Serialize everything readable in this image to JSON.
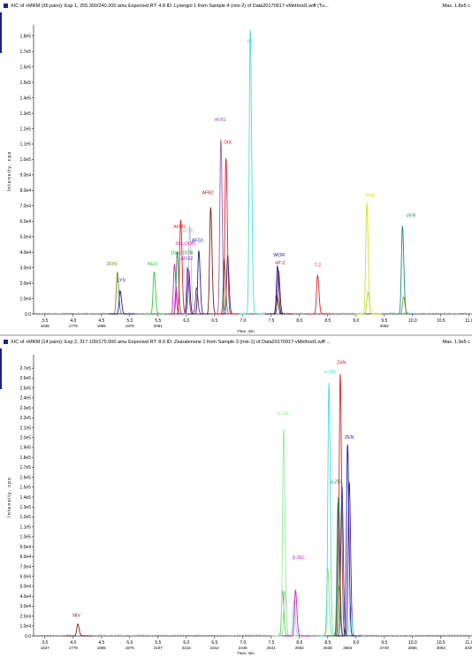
{
  "chart_data": [
    {
      "type": "line",
      "title": "XIC of +MRM (36 pairs): Exp 1, 255.300/240.200 amu Expected RT: 4.8 ID: Lysergol 1 from Sample 4 (mix-2) of Data20170917-vMethod1.wiff (Tu...",
      "max_label": "Max. 1.8e5 c",
      "xlabel": "Time, min",
      "ylabel": "Intensity, cps",
      "xlim": [
        3.3,
        11.05
      ],
      "ylim": [
        0,
        185000
      ],
      "x_ticks": [
        "3.5",
        "4.0",
        "4.5",
        "5.0",
        "5.5",
        "6.0",
        "6.5",
        "7.0",
        "7.5",
        "8.0",
        "8.5",
        "9.0",
        "9.5",
        "10.0",
        "10.5",
        "11.0"
      ],
      "x_tick_values": [
        3.5,
        4.0,
        4.5,
        5.0,
        5.5,
        6.0,
        6.5,
        7.0,
        7.5,
        8.0,
        8.5,
        9.0,
        9.5,
        10.0,
        10.5,
        11.0
      ],
      "scan_labels": [
        "1638",
        "1779",
        "1865",
        "1975",
        "2051",
        "2052"
      ],
      "scan_label_x": [
        3.5,
        4.0,
        4.5,
        5.0,
        5.5,
        9.5
      ],
      "y_ticks": [
        "1.8e5",
        "1.7e5",
        "1.6e5",
        "1.5e5",
        "1.4e5",
        "1.3e5",
        "1.2e5",
        "1.1e5",
        "1.0e5",
        "9.0e4",
        "8.0e4",
        "7.0e4",
        "6.0e4",
        "5.0e4",
        "4.0e4",
        "3.0e4",
        "2.0e4",
        "1.0e4",
        "0.0"
      ],
      "y_tick_values": [
        180000,
        170000,
        160000,
        150000,
        140000,
        130000,
        120000,
        110000,
        100000,
        90000,
        80000,
        70000,
        60000,
        50000,
        40000,
        30000,
        20000,
        10000,
        0
      ],
      "peaks": [
        {
          "name": "DON",
          "rt": 4.78,
          "height": 27000,
          "color": "#6b8e23",
          "label_rt": 4.68,
          "label_y": 31500
        },
        {
          "name": "LYS",
          "rt": 4.83,
          "height": 15000,
          "color": "#1a1aa6",
          "label_rt": 4.85,
          "label_y": 21000
        },
        {
          "name": "NEO",
          "rt": 5.43,
          "height": 27000,
          "color": "#2ecc2e",
          "label_rt": 5.4,
          "label_y": 31500
        },
        {
          "name": "3Ac-DON",
          "rt": 5.79,
          "height": 32000,
          "color": "#d61ac2",
          "label_rt": 5.98,
          "label_y": 44800
        },
        {
          "name": "15Ac-DON",
          "rt": 5.84,
          "height": 40000,
          "color": "#2e8b57",
          "label_rt": 5.92,
          "label_y": 38600
        },
        {
          "name": "AFM2",
          "rt": 5.9,
          "height": 61000,
          "color": "#e02020",
          "label_rt": 5.88,
          "label_y": 55600
        },
        {
          "name": "AFM1",
          "rt": 6.06,
          "height": 57000,
          "color": "#bdbdbd",
          "label_rt": 6.04,
          "label_y": 53000
        },
        {
          "name": "AFG2",
          "rt": 6.02,
          "height": 30000,
          "color": "#8a2be2",
          "label_rt": 6.01,
          "label_y": 34800
        },
        {
          "name": "AFG1",
          "rt": 6.22,
          "height": 41000,
          "color": "#2020a0",
          "label_rt": 6.2,
          "label_y": 46800
        },
        {
          "name": "AFB2",
          "rt": 6.43,
          "height": 69000,
          "color": "#7b1c1c",
          "label_rt": 6.38,
          "label_y": 77500
        },
        {
          "name": "AFB1",
          "rt": 6.61,
          "height": 113000,
          "color": "#9b59b6",
          "label_rt": 6.6,
          "label_y": 125000
        },
        {
          "name": "DIA",
          "rt": 6.7,
          "height": 101000,
          "color": "#e02020",
          "label_rt": 6.73,
          "label_y": 110200
        },
        {
          "name": "RC",
          "rt": 7.13,
          "height": 184000,
          "color": "#40e0e0",
          "label_rt": 7.13,
          "label_y": 175500
        },
        {
          "name": "WOR",
          "rt": 7.61,
          "height": 31000,
          "color": "#2020a0",
          "label_rt": 7.64,
          "label_y": 37100
        },
        {
          "name": "HT-2",
          "rt": 7.63,
          "height": 28000,
          "color": "#7b1c1c",
          "label_rt": 7.66,
          "label_y": 32100
        },
        {
          "name": "T-2",
          "rt": 8.32,
          "height": 25000,
          "color": "#e02020",
          "label_rt": 8.32,
          "label_y": 30500
        },
        {
          "name": "ENB",
          "rt": 9.19,
          "height": 72000,
          "color": "#d8e020",
          "label_rt": 9.25,
          "label_y": 76000
        },
        {
          "name": "VER",
          "rt": 9.82,
          "height": 57000,
          "color": "#1a8a7a",
          "label_rt": 9.97,
          "label_y": 62700
        }
      ],
      "extra_traces": [
        {
          "rt": 5.82,
          "height": 18000,
          "color": "#e040fb"
        },
        {
          "rt": 6.04,
          "height": 29000,
          "color": "#111111"
        },
        {
          "rt": 6.18,
          "height": 17000,
          "color": "#7b1c1c"
        },
        {
          "rt": 6.67,
          "height": 36000,
          "color": "#2e7d32"
        },
        {
          "rt": 6.73,
          "height": 38000,
          "color": "#2020a0"
        },
        {
          "rt": 7.6,
          "height": 12000,
          "color": "#111111"
        },
        {
          "rt": 9.21,
          "height": 14000,
          "color": "#a0d040"
        },
        {
          "rt": 9.84,
          "height": 11000,
          "color": "#6b8e23"
        }
      ]
    },
    {
      "type": "line",
      "title": "XIC of +MRM (14 pairs): Exp 2, 317.100/175.000 amu Expected RT: 8.9 ID: Zearalenone 1 from Sample 3 (mix-1) of Data20170917-vMethod1.wiff ...",
      "max_label": "Max. 1.9e5 c",
      "xlabel": "Time, min",
      "ylabel": "Intensity, cps",
      "xlim": [
        3.3,
        11.05
      ],
      "ylim": [
        0,
        280000
      ],
      "x_ticks": [
        "3.5",
        "4.0",
        "4.5",
        "5.0",
        "5.5",
        "6.0",
        "6.5",
        "7.0",
        "7.5",
        "8.0",
        "8.5",
        "9.0",
        "9.5",
        "10.0",
        "10.5",
        "11.0"
      ],
      "x_tick_values": [
        3.5,
        4.0,
        4.5,
        5.0,
        5.5,
        6.0,
        6.5,
        7.0,
        7.5,
        8.0,
        8.5,
        9.0,
        9.5,
        10.0,
        10.5,
        11.0
      ],
      "scan_labels": [
        "1637",
        "1778",
        "1865",
        "1975",
        "2107",
        "2216",
        "2312",
        "2445",
        "2541",
        "2592",
        "2638",
        "2684",
        "2749",
        "2866",
        "3053",
        "3339"
      ],
      "scan_label_x": [
        3.5,
        4.0,
        4.5,
        5.0,
        5.5,
        6.0,
        6.5,
        7.0,
        7.5,
        8.0,
        8.5,
        8.85,
        9.5,
        10.0,
        10.5,
        11.0
      ],
      "y_ticks": [
        "2.7e5",
        "2.6e5",
        "2.5e5",
        "2.4e5",
        "2.3e5",
        "2.2e5",
        "2.1e5",
        "2.0e5",
        "1.9e5",
        "1.8e5",
        "1.7e5",
        "1.6e5",
        "1.5e5",
        "1.4e5",
        "1.3e5",
        "1.2e5",
        "1.1e5",
        "1.0e5",
        "9.0e4",
        "8.0e4",
        "7.0e4",
        "6.0e4",
        "5.0e4",
        "4.0e4",
        "3.0e4",
        "2.0e4",
        "1.0e4",
        "0.0"
      ],
      "y_tick_values": [
        270000,
        260000,
        250000,
        240000,
        230000,
        220000,
        210000,
        200000,
        190000,
        180000,
        170000,
        160000,
        150000,
        140000,
        130000,
        120000,
        110000,
        100000,
        90000,
        80000,
        70000,
        60000,
        50000,
        40000,
        30000,
        20000,
        10000,
        0
      ],
      "peaks": [
        {
          "name": "NIV",
          "rt": 4.08,
          "height": 12000,
          "color": "#7b1c1c",
          "label_rt": 4.06,
          "label_y": 19000
        },
        {
          "name": "β-ZAL",
          "rt": 7.72,
          "height": 209000,
          "color": "#90ee90",
          "label_rt": 7.72,
          "label_y": 223000
        },
        {
          "name": "β-ZEL",
          "rt": 7.93,
          "height": 46000,
          "color": "#d61ac2",
          "label_rt": 7.99,
          "label_y": 77800
        },
        {
          "name": "α-ZAL",
          "rt": 8.52,
          "height": 255000,
          "color": "#40e0e0",
          "label_rt": 8.55,
          "label_y": 265000
        },
        {
          "name": "ZAN",
          "rt": 8.72,
          "height": 264000,
          "color": "#e02020",
          "label_rt": 8.74,
          "label_y": 274000
        },
        {
          "name": "α-ZEL",
          "rt": 8.69,
          "height": 140000,
          "color": "#2e7d32",
          "label_rt": 8.66,
          "label_y": 154000
        },
        {
          "name": "ZEN",
          "rt": 8.85,
          "height": 193000,
          "color": "#1a1aa6",
          "label_rt": 8.88,
          "label_y": 199000
        }
      ],
      "extra_traces": [
        {
          "rt": 7.7,
          "height": 45000,
          "color": "#2ecc2e"
        },
        {
          "rt": 7.74,
          "height": 45000,
          "color": "#bdbdbd"
        },
        {
          "rt": 7.9,
          "height": 35000,
          "color": "#87ceeb"
        },
        {
          "rt": 8.5,
          "height": 68000,
          "color": "#a0d040"
        },
        {
          "rt": 8.68,
          "height": 135000,
          "color": "#1a8a7a"
        },
        {
          "rt": 8.7,
          "height": 50000,
          "color": "#2ecc2e"
        },
        {
          "rt": 8.75,
          "height": 152000,
          "color": "#1a1aa6"
        },
        {
          "rt": 8.88,
          "height": 155000,
          "color": "#4b0082"
        },
        {
          "rt": 8.9,
          "height": 30000,
          "color": "#40e0e0"
        }
      ]
    }
  ]
}
